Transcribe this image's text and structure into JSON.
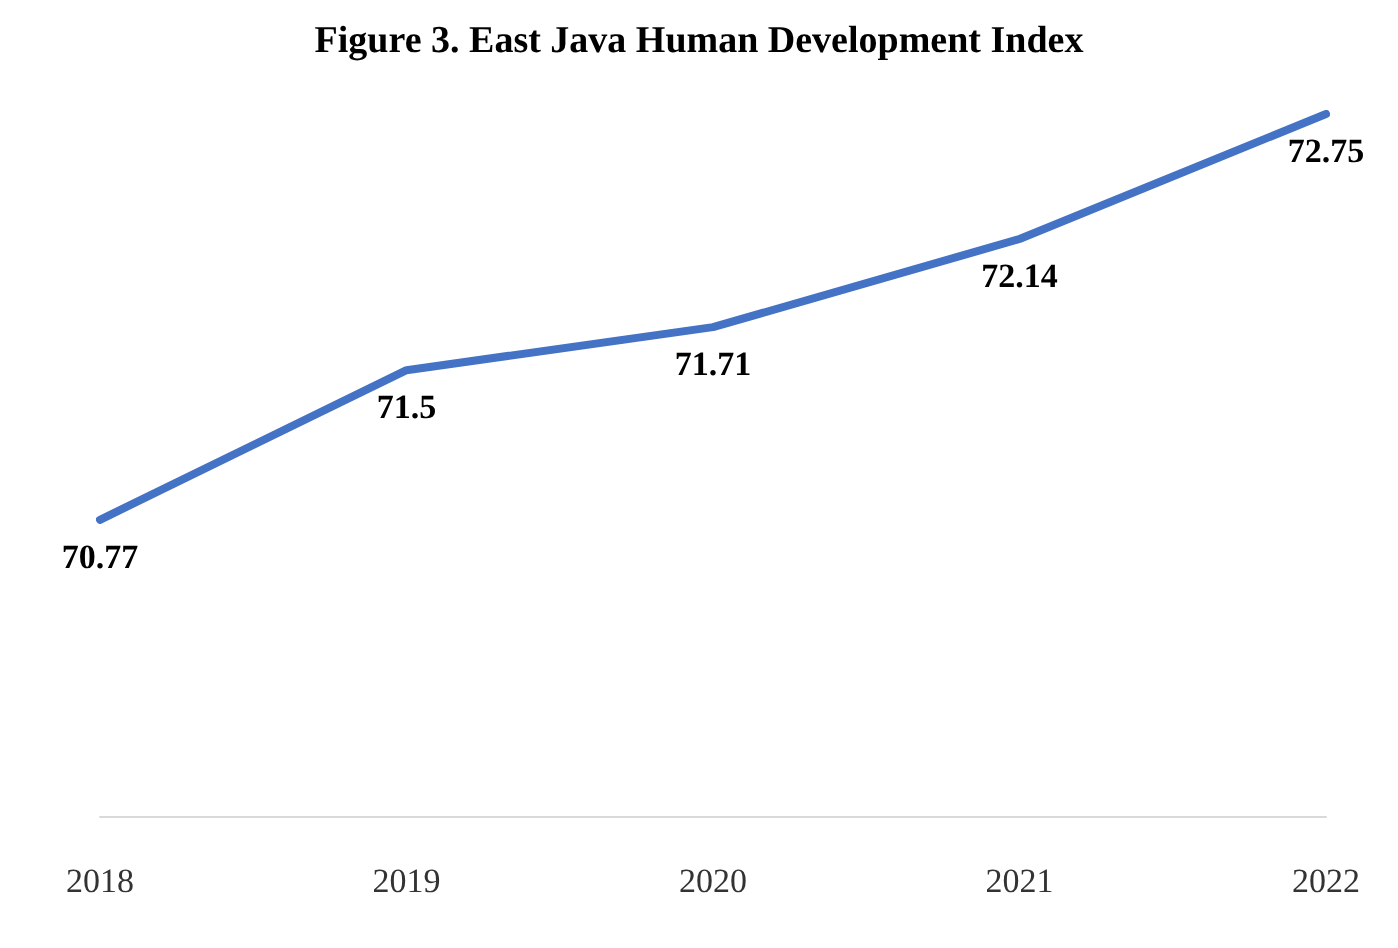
{
  "chart_data": {
    "type": "line",
    "title": "Figure 3. East Java Human Development Index",
    "categories": [
      "2018",
      "2019",
      "2020",
      "2021",
      "2022"
    ],
    "series": [
      {
        "color": "#4472c4",
        "values": [
          70.77,
          71.5,
          71.71,
          72.14,
          72.75
        ]
      }
    ],
    "tick_labels": "x",
    "data_labels": true,
    "marker": "none",
    "line_style": "solid"
  }
}
